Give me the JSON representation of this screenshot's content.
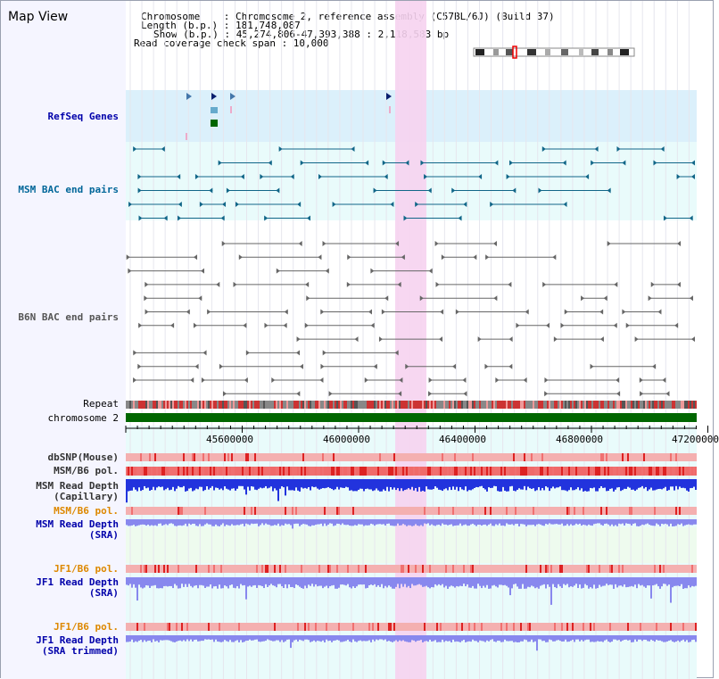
{
  "page_title": "Map View",
  "info": {
    "chromosome_line": "Chromosome    : Chromosome 2, reference assembly (C57BL/6J) (Build 37)",
    "length_line": "Length (b.p.) : 181,748,087",
    "show_line": "Show (b.p.) : 45,274,806-47,393,388 : 2,118,583 bp",
    "coverage_line": "Read coverage check span : 10,000"
  },
  "tracks": {
    "refseq": "RefSeq Genes",
    "msm_bac": "MSM BAC end pairs",
    "b6n_bac": "B6N BAC end pairs",
    "repeat": "Repeat",
    "chromosome": "chromosome 2",
    "dbsnp": "dbSNP(Mouse)",
    "msm_b6_pol_1": "MSM/B6 pol.",
    "msm_depth_cap_1": "MSM Read Depth",
    "msm_depth_cap_2": "(Capillary)",
    "msm_b6_pol_2": "MSM/B6 pol.",
    "msm_depth_sra_1": "MSM Read Depth",
    "msm_depth_sra_2": "(SRA)",
    "jf1_pol_1": "JF1/B6 pol.",
    "jf1_depth_1": "JF1 Read Depth",
    "jf1_depth_2": "(SRA)",
    "jf1_pol_2": "JF1/B6 pol.",
    "jf1_trim_1": "JF1 Read Depth",
    "jf1_trim_2": "(SRA trimmed)"
  },
  "axis": {
    "ticks": [
      "45600000",
      "46000000",
      "46400000",
      "46800000",
      "47200000"
    ]
  },
  "colors": {
    "refseq_label": "#0000aa",
    "msm_label": "#006699",
    "b6n_label": "#444444",
    "orange_label": "#dd8800",
    "depth_label": "#0000aa",
    "highlight": "#f6d3f0",
    "chromosome_bar": "#006600"
  }
}
